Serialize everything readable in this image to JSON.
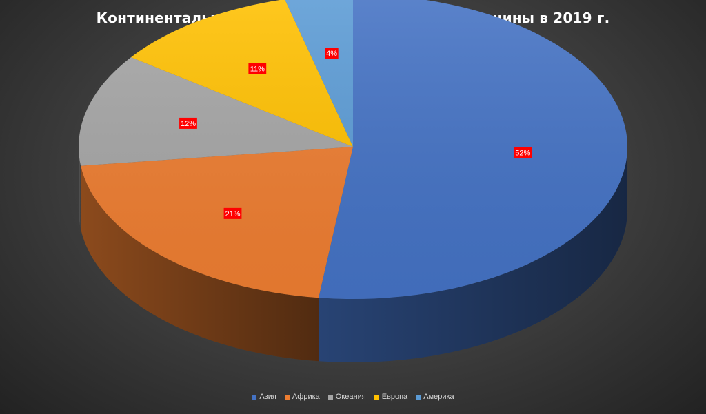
{
  "chart_data": {
    "type": "pie",
    "title": "Континентальная статистика производства баранины в 2019 г.",
    "slices": [
      {
        "name": "Азия",
        "value": 52,
        "label": "52%",
        "color": "#4472c4"
      },
      {
        "name": "Африка",
        "value": 21,
        "label": "21%",
        "color": "#ed7d31"
      },
      {
        "name": "Океания",
        "value": 12,
        "label": "12%",
        "color": "#a5a5a5"
      },
      {
        "name": "Европа",
        "value": 11,
        "label": "11%",
        "color": "#ffc000"
      },
      {
        "name": "Америка",
        "value": 4,
        "label": "4%",
        "color": "#5b9bd5"
      }
    ],
    "legend": "bottom",
    "label_background": "#ff0000"
  }
}
